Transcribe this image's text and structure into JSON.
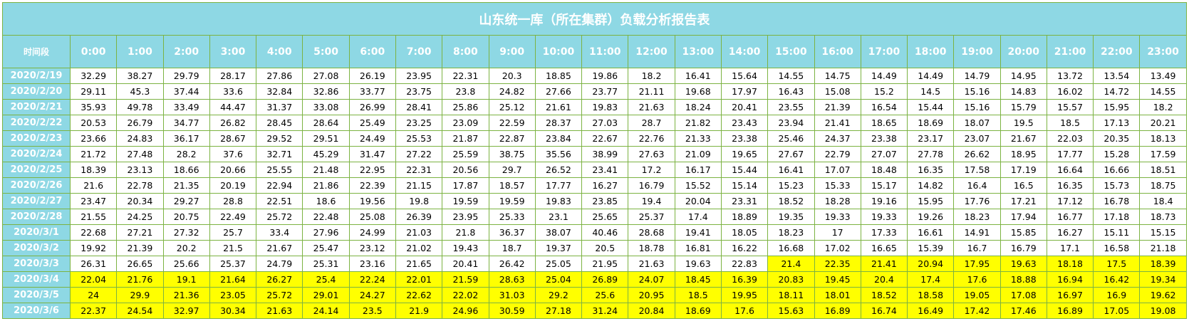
{
  "title": "山东统一库（所在集群）负载分析报告表",
  "period_header": "时间段",
  "hours": [
    "0:00",
    "1:00",
    "2:00",
    "3:00",
    "4:00",
    "5:00",
    "6:00",
    "7:00",
    "8:00",
    "9:00",
    "10:00",
    "11:00",
    "12:00",
    "13:00",
    "14:00",
    "15:00",
    "16:00",
    "17:00",
    "18:00",
    "19:00",
    "20:00",
    "21:00",
    "22:00",
    "23:00"
  ],
  "highlight_color": "#ffff00",
  "header_color": "#8ed8e4",
  "rows": [
    {
      "date": "2020/2/19",
      "values": [
        "32.29",
        "38.27",
        "29.79",
        "28.17",
        "27.86",
        "27.08",
        "26.19",
        "23.95",
        "22.31",
        "20.3",
        "18.85",
        "19.86",
        "18.2",
        "16.41",
        "15.64",
        "14.55",
        "14.75",
        "14.49",
        "14.49",
        "14.79",
        "14.95",
        "13.72",
        "13.54",
        "13.49"
      ],
      "highlight_from": -1
    },
    {
      "date": "2020/2/20",
      "values": [
        "29.11",
        "45.3",
        "37.44",
        "33.6",
        "32.84",
        "32.86",
        "33.77",
        "23.75",
        "23.8",
        "24.82",
        "27.66",
        "23.77",
        "21.11",
        "19.68",
        "17.97",
        "16.43",
        "15.08",
        "15.2",
        "14.5",
        "15.16",
        "14.83",
        "16.02",
        "14.72",
        "14.55"
      ],
      "highlight_from": -1
    },
    {
      "date": "2020/2/21",
      "values": [
        "35.93",
        "49.78",
        "33.49",
        "44.47",
        "31.37",
        "33.08",
        "26.99",
        "28.41",
        "25.86",
        "25.12",
        "21.61",
        "19.83",
        "21.63",
        "18.24",
        "20.41",
        "23.55",
        "21.39",
        "16.54",
        "15.44",
        "15.16",
        "15.79",
        "15.57",
        "15.95",
        "18.2"
      ],
      "highlight_from": -1
    },
    {
      "date": "2020/2/22",
      "values": [
        "20.53",
        "26.79",
        "34.77",
        "26.82",
        "28.45",
        "28.64",
        "25.49",
        "23.25",
        "23.09",
        "22.59",
        "28.37",
        "27.03",
        "28.7",
        "21.82",
        "23.43",
        "23.94",
        "21.41",
        "18.65",
        "18.69",
        "18.07",
        "19.5",
        "18.5",
        "17.13",
        "20.21"
      ],
      "highlight_from": -1
    },
    {
      "date": "2020/2/23",
      "values": [
        "23.66",
        "24.83",
        "36.17",
        "28.67",
        "29.52",
        "29.51",
        "24.49",
        "25.53",
        "21.87",
        "22.87",
        "23.84",
        "22.67",
        "22.76",
        "21.33",
        "23.38",
        "25.46",
        "24.37",
        "23.38",
        "23.17",
        "23.07",
        "21.67",
        "22.03",
        "20.35",
        "18.13"
      ],
      "highlight_from": -1
    },
    {
      "date": "2020/2/24",
      "values": [
        "21.72",
        "27.48",
        "28.2",
        "37.6",
        "32.71",
        "45.29",
        "31.47",
        "27.22",
        "25.59",
        "38.75",
        "35.56",
        "38.99",
        "27.63",
        "21.09",
        "19.65",
        "27.67",
        "22.79",
        "27.07",
        "27.78",
        "26.62",
        "18.95",
        "17.77",
        "15.28",
        "17.59"
      ],
      "highlight_from": -1
    },
    {
      "date": "2020/2/25",
      "values": [
        "18.39",
        "23.13",
        "18.66",
        "20.66",
        "25.55",
        "21.48",
        "22.95",
        "22.31",
        "20.56",
        "29.7",
        "26.52",
        "23.41",
        "17.2",
        "16.17",
        "15.44",
        "16.41",
        "17.07",
        "18.48",
        "16.35",
        "17.58",
        "17.19",
        "16.64",
        "16.66",
        "18.51"
      ],
      "highlight_from": -1
    },
    {
      "date": "2020/2/26",
      "values": [
        "21.6",
        "22.78",
        "21.35",
        "20.19",
        "22.94",
        "21.86",
        "22.39",
        "21.15",
        "17.87",
        "18.57",
        "17.77",
        "16.27",
        "16.79",
        "15.52",
        "15.14",
        "15.23",
        "15.33",
        "15.17",
        "14.82",
        "16.4",
        "16.5",
        "16.35",
        "15.73",
        "18.75"
      ],
      "highlight_from": -1
    },
    {
      "date": "2020/2/27",
      "values": [
        "23.47",
        "20.34",
        "29.27",
        "28.8",
        "22.51",
        "18.6",
        "19.56",
        "19.8",
        "19.59",
        "19.59",
        "19.83",
        "23.85",
        "19.4",
        "20.04",
        "23.31",
        "18.52",
        "18.28",
        "19.16",
        "15.95",
        "17.76",
        "17.21",
        "17.12",
        "16.78",
        "18.4"
      ],
      "highlight_from": -1
    },
    {
      "date": "2020/2/28",
      "values": [
        "21.55",
        "24.25",
        "20.75",
        "22.49",
        "25.72",
        "22.48",
        "25.08",
        "26.39",
        "23.95",
        "25.33",
        "23.1",
        "25.65",
        "25.37",
        "17.4",
        "18.89",
        "19.35",
        "19.33",
        "19.33",
        "19.26",
        "18.23",
        "17.94",
        "16.77",
        "17.18",
        "18.73"
      ],
      "highlight_from": -1
    },
    {
      "date": "2020/3/1",
      "values": [
        "22.68",
        "27.21",
        "27.32",
        "25.7",
        "33.4",
        "27.96",
        "24.99",
        "21.03",
        "21.8",
        "36.37",
        "38.07",
        "40.46",
        "28.68",
        "19.41",
        "18.05",
        "18.23",
        "17",
        "17.33",
        "16.61",
        "14.91",
        "15.85",
        "16.27",
        "15.11",
        "15.15"
      ],
      "highlight_from": -1
    },
    {
      "date": "2020/3/2",
      "values": [
        "19.92",
        "21.39",
        "20.2",
        "21.5",
        "21.67",
        "25.47",
        "23.12",
        "21.02",
        "19.43",
        "18.7",
        "19.37",
        "20.5",
        "18.78",
        "16.81",
        "16.22",
        "16.68",
        "17.02",
        "16.65",
        "15.39",
        "16.7",
        "16.79",
        "17.1",
        "16.58",
        "21.18"
      ],
      "highlight_from": -1
    },
    {
      "date": "2020/3/3",
      "values": [
        "26.31",
        "26.65",
        "25.66",
        "25.37",
        "24.79",
        "25.31",
        "23.16",
        "21.65",
        "20.41",
        "26.42",
        "25.05",
        "21.95",
        "21.63",
        "19.63",
        "22.83",
        "21.4",
        "22.35",
        "21.41",
        "20.94",
        "17.95",
        "19.63",
        "18.18",
        "17.5",
        "18.39"
      ],
      "highlight_from": 15
    },
    {
      "date": "2020/3/4",
      "values": [
        "22.04",
        "21.76",
        "19.1",
        "21.64",
        "26.27",
        "25.4",
        "22.24",
        "22.01",
        "21.59",
        "28.63",
        "25.04",
        "26.89",
        "24.07",
        "18.45",
        "16.39",
        "20.83",
        "19.45",
        "20.4",
        "17.4",
        "17.6",
        "18.88",
        "16.94",
        "16.42",
        "19.34"
      ],
      "highlight_from": 0
    },
    {
      "date": "2020/3/5",
      "values": [
        "24",
        "29.9",
        "21.36",
        "23.05",
        "25.72",
        "29.01",
        "24.27",
        "22.62",
        "22.02",
        "31.03",
        "29.2",
        "25.6",
        "20.95",
        "18.5",
        "19.95",
        "18.11",
        "18.01",
        "18.52",
        "18.58",
        "19.05",
        "17.08",
        "16.97",
        "16.9",
        "19.62"
      ],
      "highlight_from": 0
    },
    {
      "date": "2020/3/6",
      "values": [
        "22.37",
        "24.54",
        "32.97",
        "30.34",
        "21.63",
        "24.14",
        "23.5",
        "21.9",
        "24.96",
        "30.59",
        "27.18",
        "31.24",
        "20.84",
        "18.69",
        "17.6",
        "15.63",
        "16.89",
        "16.74",
        "16.49",
        "17.42",
        "17.46",
        "16.89",
        "17.05",
        "19.08"
      ],
      "highlight_from": 0
    }
  ]
}
